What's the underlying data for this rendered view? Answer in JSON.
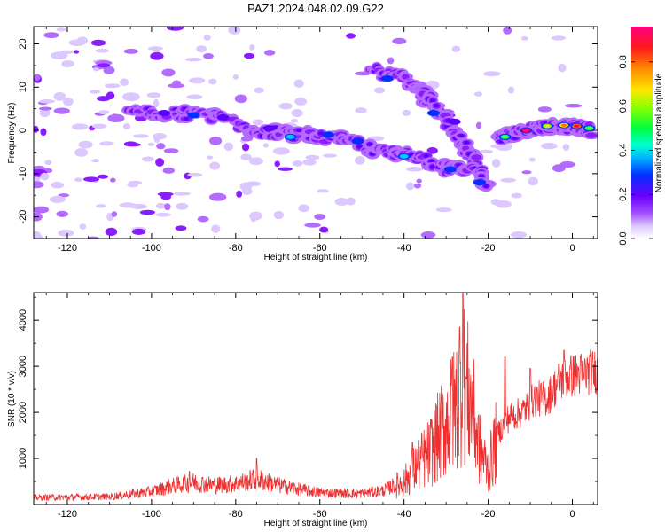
{
  "title": "PAZ1.2024.048.02.09.G22",
  "chart_data": [
    {
      "type": "heatmap",
      "title": "PAZ1.2024.048.02.09.G22",
      "xlabel": "Height of straight line (km)",
      "ylabel": "Frequency (Hz)",
      "xlim": [
        -128,
        6
      ],
      "ylim": [
        -25,
        24
      ],
      "xticks": [
        -120,
        -100,
        -80,
        -60,
        -40,
        -20,
        0
      ],
      "yticks": [
        -20,
        -10,
        0,
        10,
        20
      ],
      "colorbar": {
        "label": "Normalized spectral amplitude",
        "range": [
          0,
          0.96
        ],
        "ticks": [
          "0.0",
          "0.2",
          "0.4",
          "0.6",
          "0.8"
        ],
        "colormap": "rainbow (violet to red)",
        "colors": [
          "#ffffff",
          "#dcc8ff",
          "#b46bff",
          "#8a1cff",
          "#5a00ff",
          "#0030ff",
          "#00c8ff",
          "#00ff7a",
          "#7aff00",
          "#ffe600",
          "#ff6a00",
          "#ff0038",
          "#ff00a0"
        ]
      },
      "features": [
        {
          "name": "main band",
          "points": [
            [
              -105,
              4
            ],
            [
              -95,
              4
            ],
            [
              -85,
              3
            ],
            [
              -75,
              0
            ],
            [
              -65,
              -1
            ],
            [
              -55,
              -2
            ],
            [
              -45,
              -5
            ],
            [
              -38,
              -6
            ],
            [
              -30,
              -9
            ],
            [
              -25,
              -9
            ]
          ]
        },
        {
          "name": "upper branch",
          "points": [
            [
              -48,
              14
            ],
            [
              -40,
              12
            ],
            [
              -35,
              8
            ],
            [
              -30,
              3
            ],
            [
              -26,
              -3
            ],
            [
              -23,
              -8
            ],
            [
              -20,
              -14
            ]
          ]
        },
        {
          "name": "low-height signal",
          "points": [
            [
              -18,
              -2
            ],
            [
              -14,
              -1
            ],
            [
              -10,
              0
            ],
            [
              -5,
              1
            ],
            [
              0,
              1
            ],
            [
              5,
              0
            ]
          ]
        }
      ]
    },
    {
      "type": "line",
      "xlabel": "Height of straight line (km)",
      "ylabel": "SNR (10 * v/v)",
      "xlim": [
        -128,
        6
      ],
      "ylim": [
        0,
        4600
      ],
      "xticks": [
        -120,
        -100,
        -80,
        -60,
        -40,
        -20,
        0
      ],
      "yticks": [
        1000,
        2000,
        3000,
        4000
      ],
      "color": "#ee3030",
      "envelope": [
        {
          "x": -128,
          "y": 150
        },
        {
          "x": -120,
          "y": 160
        },
        {
          "x": -110,
          "y": 170
        },
        {
          "x": -100,
          "y": 280
        },
        {
          "x": -95,
          "y": 400
        },
        {
          "x": -90,
          "y": 480
        },
        {
          "x": -85,
          "y": 420
        },
        {
          "x": -80,
          "y": 450
        },
        {
          "x": -75,
          "y": 560
        },
        {
          "x": -70,
          "y": 420
        },
        {
          "x": -65,
          "y": 330
        },
        {
          "x": -60,
          "y": 260
        },
        {
          "x": -55,
          "y": 240
        },
        {
          "x": -50,
          "y": 240
        },
        {
          "x": -45,
          "y": 300
        },
        {
          "x": -40,
          "y": 520
        },
        {
          "x": -37,
          "y": 900
        },
        {
          "x": -34,
          "y": 1200
        },
        {
          "x": -31,
          "y": 1700
        },
        {
          "x": -28,
          "y": 2200
        },
        {
          "x": -26,
          "y": 2900
        },
        {
          "x": -24,
          "y": 2300
        },
        {
          "x": -22,
          "y": 1300
        },
        {
          "x": -20,
          "y": 800
        },
        {
          "x": -18,
          "y": 1500
        },
        {
          "x": -15,
          "y": 1900
        },
        {
          "x": -12,
          "y": 2000
        },
        {
          "x": -9,
          "y": 2300
        },
        {
          "x": -6,
          "y": 2300
        },
        {
          "x": -3,
          "y": 2700
        },
        {
          "x": 0,
          "y": 2800
        },
        {
          "x": 3,
          "y": 2850
        },
        {
          "x": 6,
          "y": 2900
        }
      ],
      "spikes": [
        {
          "x": -26,
          "y": 4600
        },
        {
          "x": -26.8,
          "y": 3850
        },
        {
          "x": -28.5,
          "y": 3200
        },
        {
          "x": -38,
          "y": 1350
        },
        {
          "x": -75,
          "y": 1000
        },
        {
          "x": -91,
          "y": 720
        },
        {
          "x": -2,
          "y": 3350
        },
        {
          "x": -16,
          "y": 3200
        },
        {
          "x": -10,
          "y": 2950
        }
      ]
    }
  ]
}
